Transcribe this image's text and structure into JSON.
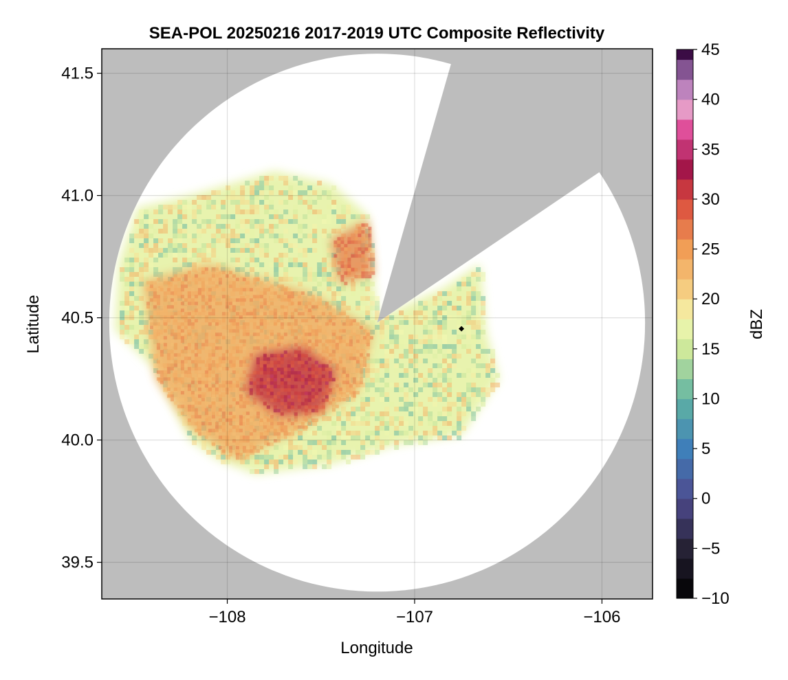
{
  "chart_data": {
    "type": "heatmap",
    "title": "SEA-POL 20250216 2017-2019 UTC Composite Reflectivity",
    "xlabel": "Longitude",
    "ylabel": "Latitude",
    "xlim": [
      -108.67,
      -105.73
    ],
    "ylim": [
      39.35,
      41.6
    ],
    "x_ticks": [
      -108,
      -107,
      -106
    ],
    "x_tick_labels": [
      "−108",
      "−107",
      "−106"
    ],
    "y_ticks": [
      39.5,
      40.0,
      40.5,
      41.0,
      41.5
    ],
    "y_tick_labels": [
      "39.5",
      "40.0",
      "40.5",
      "41.0",
      "41.5"
    ],
    "grid": true,
    "background_color": "#bdbdbd",
    "coverage_color": "#ffffff",
    "radar": {
      "center_lon": -107.2,
      "center_lat": 40.48,
      "range_lon_deg": 1.43,
      "range_lat_deg": 1.1,
      "blocked_sector_bearing_deg": [
        16,
        56
      ]
    },
    "marker": {
      "lon": -106.75,
      "lat": 40.455,
      "shape": "diamond",
      "color": "#000000"
    },
    "colorbar": {
      "label": "dBZ",
      "min": -10,
      "max": 45,
      "step": 2,
      "ticks": [
        -10,
        -5,
        0,
        5,
        10,
        15,
        20,
        25,
        30,
        35,
        40,
        45
      ],
      "tick_labels": [
        "−10",
        "−5",
        "0",
        "5",
        "10",
        "15",
        "20",
        "25",
        "30",
        "35",
        "40",
        "45"
      ],
      "colormap": "Spectral reversed with dark extremes",
      "stops": [
        [
          -10,
          "#000000"
        ],
        [
          -5,
          "#262235"
        ],
        [
          0,
          "#4e4a8e"
        ],
        [
          5,
          "#3f7fb9"
        ],
        [
          10,
          "#5fb3a3"
        ],
        [
          15,
          "#cde89b"
        ],
        [
          18,
          "#f4f8b2"
        ],
        [
          20,
          "#f6d78a"
        ],
        [
          25,
          "#f19e56"
        ],
        [
          30,
          "#d9483c"
        ],
        [
          33,
          "#a31649"
        ],
        [
          37,
          "#df4f9a"
        ],
        [
          39,
          "#e69ac6"
        ],
        [
          42,
          "#a978b8"
        ],
        [
          45,
          "#3b0c45"
        ]
      ]
    },
    "echo_regions": [
      {
        "name": "main echo",
        "dbz_range": [
          10,
          24
        ],
        "polygon": [
          [
            -108.48,
            40.95
          ],
          [
            -108.2,
            41.0
          ],
          [
            -107.75,
            41.1
          ],
          [
            -107.45,
            41.05
          ],
          [
            -107.25,
            40.92
          ],
          [
            -107.2,
            40.5
          ],
          [
            -106.85,
            40.62
          ],
          [
            -106.65,
            40.72
          ],
          [
            -106.62,
            40.45
          ],
          [
            -106.55,
            40.25
          ],
          [
            -106.75,
            40.02
          ],
          [
            -107.1,
            39.98
          ],
          [
            -107.45,
            39.9
          ],
          [
            -107.85,
            39.86
          ],
          [
            -108.05,
            39.92
          ],
          [
            -108.2,
            40.0
          ],
          [
            -108.4,
            40.3
          ],
          [
            -108.6,
            40.45
          ],
          [
            -108.58,
            40.72
          ]
        ]
      },
      {
        "name": "orange band",
        "dbz_range": [
          22,
          27
        ],
        "polygon": [
          [
            -108.45,
            40.65
          ],
          [
            -108.1,
            40.72
          ],
          [
            -107.55,
            40.6
          ],
          [
            -107.22,
            40.45
          ],
          [
            -107.3,
            40.2
          ],
          [
            -107.6,
            40.05
          ],
          [
            -107.95,
            39.92
          ],
          [
            -108.2,
            40.05
          ],
          [
            -108.38,
            40.25
          ]
        ]
      },
      {
        "name": "northern cell",
        "dbz_range": [
          24,
          30
        ],
        "polygon": [
          [
            -107.45,
            40.82
          ],
          [
            -107.25,
            40.9
          ],
          [
            -107.22,
            40.68
          ],
          [
            -107.4,
            40.64
          ]
        ]
      },
      {
        "name": "core",
        "dbz_range": [
          28,
          35
        ],
        "polygon": [
          [
            -107.85,
            40.35
          ],
          [
            -107.6,
            40.38
          ],
          [
            -107.42,
            40.28
          ],
          [
            -107.5,
            40.12
          ],
          [
            -107.72,
            40.1
          ],
          [
            -107.9,
            40.2
          ]
        ]
      }
    ]
  }
}
